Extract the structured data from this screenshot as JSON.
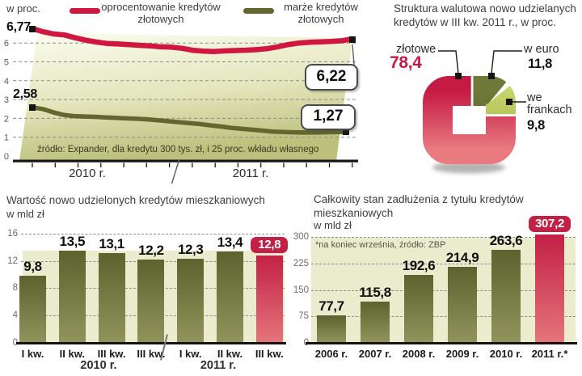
{
  "chart_data": [
    {
      "id": "rates",
      "type": "line",
      "unit": "w proc.",
      "y_ticks": [
        6,
        5,
        4,
        3,
        2,
        1,
        0
      ],
      "ylim": [
        0,
        7
      ],
      "x_groups": [
        "2010 r.",
        "2011 r."
      ],
      "source": "źródło: Expander, dla kredytu 300 tys. zł, i 25 proc. wkładu własnego",
      "series": [
        {
          "name": "oprocentowanie kredytów złotowych",
          "color": "#d0173f",
          "start_label": "6,77",
          "end_label": "6,22",
          "values": [
            6.77,
            6.6,
            6.48,
            6.43,
            6.28,
            6.15,
            6.05,
            5.98,
            5.95,
            5.92,
            5.88,
            5.85,
            5.8,
            5.78,
            5.72,
            5.62,
            5.57,
            5.55,
            5.58,
            5.6,
            5.62,
            5.65,
            5.7,
            5.8,
            5.92,
            6.0,
            6.04,
            6.06,
            6.08,
            6.12,
            6.22
          ]
        },
        {
          "name": "marże kredytów złotowych",
          "color": "#63672f",
          "start_label": "2,58",
          "end_label": "1,27",
          "values": [
            2.58,
            2.5,
            2.32,
            2.18,
            2.12,
            2.1,
            2.08,
            2.05,
            2.03,
            2.0,
            1.98,
            1.95,
            1.9,
            1.85,
            1.8,
            1.75,
            1.7,
            1.63,
            1.57,
            1.5,
            1.45,
            1.4,
            1.35,
            1.3,
            1.28,
            1.26,
            1.25,
            1.25,
            1.26,
            1.27,
            1.27
          ]
        }
      ]
    },
    {
      "id": "currency",
      "type": "pie",
      "title": "Struktura walutowa nowo udzielanych kredytów w III kw. 2011 r.,  w proc.",
      "slices": [
        {
          "label": "złotowe",
          "value": 78.4,
          "display": "78,4",
          "color": "#c51a44",
          "color2": "#e87a80"
        },
        {
          "label": "w euro",
          "value": 11.8,
          "display": "11,8",
          "color": "#6f7a39",
          "color2": "#525c28"
        },
        {
          "label": "we frankach",
          "value": 9.8,
          "display": "9,8",
          "color": "#c6d46b",
          "color2": "#a3b148"
        }
      ]
    },
    {
      "id": "new_loans",
      "type": "bar",
      "title": "Wartość nowo udzielonych kredytów mieszkaniowych",
      "unit": "w mld zł",
      "categories": [
        "I kw.",
        "II kw.",
        "III kw.",
        "III kw.",
        "I kw.",
        "II kw.",
        "III kw."
      ],
      "values": [
        9.8,
        13.5,
        13.1,
        12.2,
        12.3,
        13.4,
        12.8
      ],
      "display_values": [
        "9,8",
        "13,5",
        "13,1",
        "12,2",
        "12,3",
        "13,4",
        "12,8"
      ],
      "highlight_index": 6,
      "group_labels": [
        "2010 r.",
        "2011 r."
      ],
      "y_ticks": [
        16,
        12,
        8,
        4,
        0
      ],
      "ylim": [
        0,
        16
      ],
      "bar_color": "#5d622e",
      "bar_color2": "#90945c",
      "highlight_color": "#c32045",
      "highlight_color2": "#e4767c"
    },
    {
      "id": "total_debt",
      "type": "bar",
      "title": "Całkowity stan zadłużenia z tytułu kredytów mieszkaniowych",
      "unit": "w mld zł",
      "note": "*na koniec września, źródło: ZBP",
      "categories": [
        "2006 r.",
        "2007 r.",
        "2008 r.",
        "2009 r.",
        "2010 r.",
        "2011 r.*"
      ],
      "values": [
        77.7,
        115.8,
        192.6,
        214.9,
        263.6,
        307.2
      ],
      "display_values": [
        "77,7",
        "115,8",
        "192,6",
        "214,9",
        "263,6",
        "307,2"
      ],
      "highlight_index": 5,
      "y_ticks": [
        300,
        225,
        150,
        75,
        0
      ],
      "ylim": [
        0,
        300
      ],
      "bar_color": "#5d622e",
      "bar_color2": "#90945c",
      "highlight_color": "#c32045",
      "highlight_color2": "#e4767c"
    }
  ]
}
